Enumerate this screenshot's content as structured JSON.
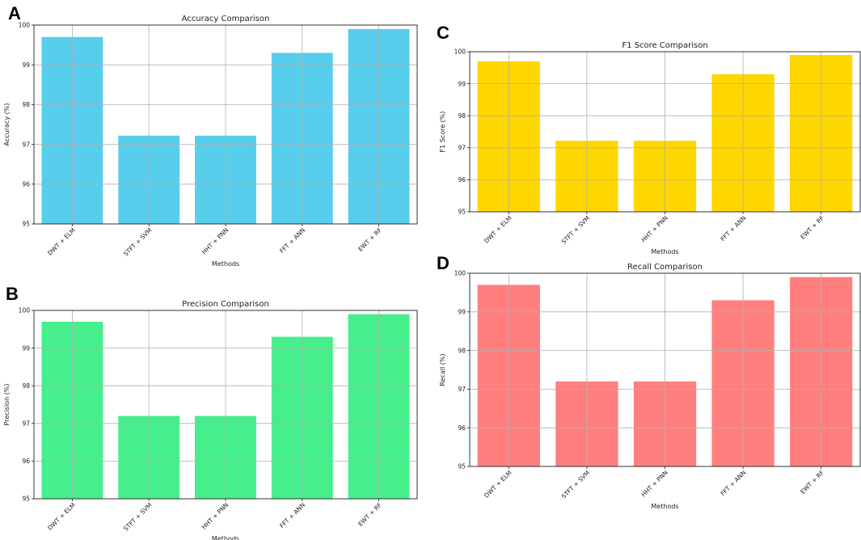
{
  "chart_data": [
    {
      "panel": "A",
      "type": "bar",
      "title": "Accuracy Comparison",
      "xlabel": "Methods",
      "ylabel": "Accuracy (%)",
      "categories": [
        "DWT + ELM",
        "STFT + SVM",
        "HHT + PNN",
        "FFT + ANN",
        "EWT + RF"
      ],
      "values": [
        99.7,
        97.22,
        97.22,
        99.3,
        99.9
      ],
      "ylim": [
        95,
        100
      ],
      "yticks": [
        "95",
        "96",
        "97",
        "98",
        "99",
        "100"
      ],
      "color": "#57CEEB",
      "grid": true
    },
    {
      "panel": "B",
      "type": "bar",
      "title": "Precision Comparison",
      "xlabel": "Methods",
      "ylabel": "Precision (%)",
      "categories": [
        "DWT + ELM",
        "STFT + SVM",
        "HHT + PNN",
        "FFT + ANN",
        "EWT + RF"
      ],
      "values": [
        99.7,
        97.2,
        97.2,
        99.3,
        99.9
      ],
      "ylim": [
        95,
        100
      ],
      "yticks": [
        "95",
        "96",
        "97",
        "98",
        "99",
        "100"
      ],
      "color": "#46EE8C",
      "grid": true
    },
    {
      "panel": "C",
      "type": "bar",
      "title": "F1 Score Comparison",
      "xlabel": "Methods",
      "ylabel": "F1 Score (%)",
      "categories": [
        "DWT + ELM",
        "STFT + SVM",
        "HHT + PNN",
        "FFT + ANN",
        "EWT + RF"
      ],
      "values": [
        99.7,
        97.22,
        97.22,
        99.3,
        99.9
      ],
      "ylim": [
        95,
        100
      ],
      "yticks": [
        "95",
        "96",
        "97",
        "98",
        "99",
        "100"
      ],
      "color": "#FFD700",
      "grid": true
    },
    {
      "panel": "D",
      "type": "bar",
      "title": "Recall Comparison",
      "xlabel": "Methods",
      "ylabel": "Recall (%)",
      "categories": [
        "DWT + ELM",
        "STFT + SVM",
        "HHT + PNN",
        "FFT + ANN",
        "EWT + RF"
      ],
      "values": [
        99.7,
        97.2,
        97.2,
        99.3,
        99.9
      ],
      "ylim": [
        95,
        100
      ],
      "yticks": [
        "95",
        "96",
        "97",
        "98",
        "99",
        "100"
      ],
      "color": "#FF7F7F",
      "grid": true
    }
  ]
}
